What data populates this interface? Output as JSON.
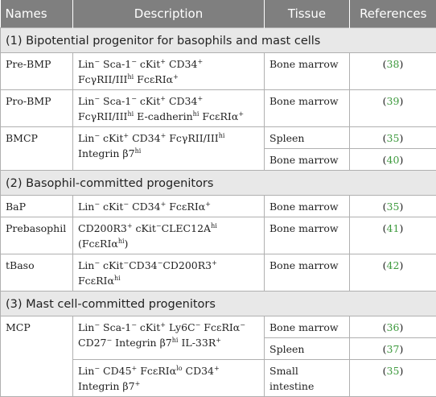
{
  "header": {
    "names": "Names",
    "description": "Description",
    "tissue": "Tissue",
    "references": "References"
  },
  "sections": [
    {
      "title": "(1) Bipotential progenitor for basophils and mast cells"
    },
    {
      "title": "(2) Basophil-committed progenitors"
    },
    {
      "title": "(3) Mast cell-committed progenitors"
    }
  ],
  "rows": {
    "prebmp": {
      "name": "Pre-BMP",
      "tissue": "Bone marrow",
      "ref": "38"
    },
    "probmp": {
      "name": "Pro-BMP",
      "tissue": "Bone marrow",
      "ref": "39"
    },
    "bmcp": {
      "name": "BMCP",
      "tissue1": "Spleen",
      "ref1": "35",
      "tissue2": "Bone marrow",
      "ref2": "40"
    },
    "bap": {
      "name": "BaP",
      "tissue": "Bone marrow",
      "ref": "35"
    },
    "prebaso": {
      "name": "Prebasophil",
      "tissue": "Bone marrow",
      "ref": "41"
    },
    "tbaso": {
      "name": "tBaso",
      "tissue": "Bone marrow",
      "ref": "42"
    },
    "mcp": {
      "name": "MCP",
      "tissue1": "Bone marrow",
      "ref1": "36",
      "tissue2": "Spleen",
      "ref2": "37",
      "tissue3": "Small intestine",
      "ref3": "35"
    }
  },
  "descriptions": {
    "prebmp": [
      "Lin",
      "−",
      " Sca-1",
      "−",
      " cKit",
      "+",
      " CD34",
      "+",
      " FcγRII/III",
      "hi",
      " FcεRIα",
      "+"
    ],
    "probmp": [
      "Lin",
      "−",
      " Sca-1",
      "−",
      " cKit",
      "+",
      " CD34",
      "+",
      " FcγRII/III",
      "hi",
      " E-cadherin",
      "hi",
      " FcεRIα",
      "+"
    ],
    "bmcp": [
      "Lin",
      "−",
      " cKit",
      "+",
      " CD34",
      "+",
      " FcγRII/III",
      "hi",
      " Integrin β7",
      "hi"
    ],
    "bap": [
      "Lin",
      "−",
      " cKit",
      "−",
      " CD34",
      "+",
      " FcεRIα",
      "+"
    ],
    "prebaso": [
      "CD200R3",
      "+",
      " cKit",
      "−",
      "CLEC12A",
      "hi",
      " (FcεRIα",
      "hi",
      ")"
    ],
    "tbaso": [
      "Lin",
      "−",
      " cKit",
      "−",
      "CD34",
      "−",
      "CD200R3",
      "+",
      " FcεRIα",
      "hi"
    ],
    "mcp1": [
      "Lin",
      "−",
      " Sca-1",
      "−",
      " cKit",
      "+",
      " Ly6C",
      "−",
      " FcεRIα",
      "−",
      " CD27",
      "−",
      " Integrin β7",
      "hi",
      " IL-33R",
      "+"
    ],
    "mcp2": [
      "Lin",
      "−",
      " CD45",
      "+",
      " FcεRIα",
      "lo",
      " CD34",
      "+",
      " Integrin β7",
      "+"
    ]
  }
}
